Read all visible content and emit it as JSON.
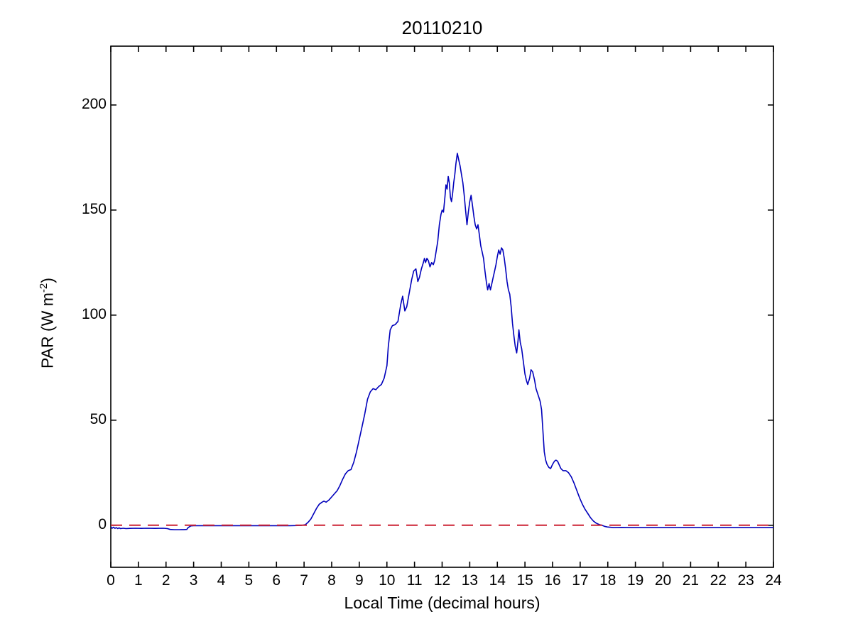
{
  "figure": {
    "title": "20110210",
    "xlabel": "Local Time (decimal hours)",
    "ylabel_main": "PAR (W m",
    "ylabel_sup": "-2",
    "ylabel_close": ")"
  },
  "chart_data": {
    "type": "line",
    "title": "20110210",
    "xlabel": "Local Time (decimal hours)",
    "ylabel": "PAR (W m^-2)",
    "xlim": [
      0,
      24
    ],
    "ylim": [
      -20,
      228
    ],
    "xticks": [
      0,
      1,
      2,
      3,
      4,
      5,
      6,
      7,
      8,
      9,
      10,
      11,
      12,
      13,
      14,
      15,
      16,
      17,
      18,
      19,
      20,
      21,
      22,
      23,
      24
    ],
    "yticks": [
      0,
      50,
      100,
      150,
      200
    ],
    "grid": false,
    "legend": "none",
    "axis_color": "#000000",
    "background": "#ffffff",
    "series": [
      {
        "name": "PAR",
        "color": "#0000bb",
        "style": "solid",
        "width": 1.6,
        "points": [
          [
            0,
            -0.8
          ],
          [
            0.05,
            -1.4
          ],
          [
            0.1,
            -0.9
          ],
          [
            0.15,
            -1.5
          ],
          [
            0.2,
            -1.1
          ],
          [
            0.25,
            -1.6
          ],
          [
            0.3,
            -1.2
          ],
          [
            0.35,
            -1.6
          ],
          [
            0.45,
            -1.4
          ],
          [
            0.55,
            -1.6
          ],
          [
            0.7,
            -1.5
          ],
          [
            0.9,
            -1.4
          ],
          [
            1.1,
            -1.5
          ],
          [
            1.3,
            -1.4
          ],
          [
            1.6,
            -1.5
          ],
          [
            1.9,
            -1.4
          ],
          [
            2.05,
            -1.6
          ],
          [
            2.15,
            -2
          ],
          [
            2.3,
            -2.1
          ],
          [
            2.5,
            -2.1
          ],
          [
            2.65,
            -2.05
          ],
          [
            2.75,
            -2
          ],
          [
            2.8,
            -1.1
          ],
          [
            2.9,
            -0.3
          ],
          [
            3,
            -0.2
          ],
          [
            3.5,
            -0.2
          ],
          [
            4,
            -0.2
          ],
          [
            4.5,
            -0.2
          ],
          [
            5,
            -0.2
          ],
          [
            5.5,
            -0.2
          ],
          [
            6,
            -0.2
          ],
          [
            6.5,
            -0.2
          ],
          [
            6.9,
            -0.1
          ],
          [
            7.05,
            0.3
          ],
          [
            7.15,
            1.5
          ],
          [
            7.25,
            3
          ],
          [
            7.35,
            5.5
          ],
          [
            7.45,
            8
          ],
          [
            7.55,
            10
          ],
          [
            7.65,
            11
          ],
          [
            7.72,
            11.5
          ],
          [
            7.8,
            11
          ],
          [
            7.9,
            12
          ],
          [
            8,
            13.5
          ],
          [
            8.1,
            15
          ],
          [
            8.2,
            16.5
          ],
          [
            8.3,
            19
          ],
          [
            8.4,
            22
          ],
          [
            8.5,
            24.5
          ],
          [
            8.6,
            26
          ],
          [
            8.7,
            26.5
          ],
          [
            8.8,
            30
          ],
          [
            8.9,
            35
          ],
          [
            9,
            41
          ],
          [
            9.1,
            47
          ],
          [
            9.2,
            53
          ],
          [
            9.3,
            60
          ],
          [
            9.4,
            63.5
          ],
          [
            9.5,
            65
          ],
          [
            9.6,
            64.5
          ],
          [
            9.7,
            66
          ],
          [
            9.8,
            67
          ],
          [
            9.9,
            70
          ],
          [
            10,
            76
          ],
          [
            10.05,
            85
          ],
          [
            10.12,
            93
          ],
          [
            10.2,
            95
          ],
          [
            10.3,
            95.5
          ],
          [
            10.4,
            97
          ],
          [
            10.5,
            105
          ],
          [
            10.57,
            109
          ],
          [
            10.65,
            102
          ],
          [
            10.72,
            104
          ],
          [
            10.8,
            110
          ],
          [
            10.9,
            117
          ],
          [
            10.97,
            121
          ],
          [
            11.05,
            122
          ],
          [
            11.12,
            116
          ],
          [
            11.18,
            118
          ],
          [
            11.25,
            122
          ],
          [
            11.32,
            125
          ],
          [
            11.36,
            127
          ],
          [
            11.4,
            125
          ],
          [
            11.45,
            127
          ],
          [
            11.5,
            126
          ],
          [
            11.56,
            123
          ],
          [
            11.62,
            125
          ],
          [
            11.68,
            124
          ],
          [
            11.73,
            126
          ],
          [
            11.78,
            130
          ],
          [
            11.84,
            135
          ],
          [
            11.9,
            143
          ],
          [
            11.96,
            148
          ],
          [
            12,
            150
          ],
          [
            12.05,
            149
          ],
          [
            12.1,
            156
          ],
          [
            12.14,
            162
          ],
          [
            12.18,
            160
          ],
          [
            12.22,
            166
          ],
          [
            12.26,
            163
          ],
          [
            12.3,
            156
          ],
          [
            12.34,
            154
          ],
          [
            12.38,
            158
          ],
          [
            12.42,
            163
          ],
          [
            12.46,
            167
          ],
          [
            12.5,
            172
          ],
          [
            12.55,
            177
          ],
          [
            12.6,
            174
          ],
          [
            12.65,
            171
          ],
          [
            12.7,
            167
          ],
          [
            12.75,
            163
          ],
          [
            12.8,
            157
          ],
          [
            12.85,
            150
          ],
          [
            12.9,
            143
          ],
          [
            12.95,
            149
          ],
          [
            13,
            154
          ],
          [
            13.05,
            157
          ],
          [
            13.1,
            152
          ],
          [
            13.15,
            147
          ],
          [
            13.2,
            143
          ],
          [
            13.25,
            141
          ],
          [
            13.3,
            143
          ],
          [
            13.35,
            138
          ],
          [
            13.4,
            133
          ],
          [
            13.45,
            130
          ],
          [
            13.5,
            127
          ],
          [
            13.55,
            121
          ],
          [
            13.6,
            116
          ],
          [
            13.65,
            112
          ],
          [
            13.7,
            115
          ],
          [
            13.75,
            112
          ],
          [
            13.8,
            115
          ],
          [
            13.85,
            118
          ],
          [
            13.9,
            121
          ],
          [
            13.95,
            124
          ],
          [
            14,
            128
          ],
          [
            14.05,
            131
          ],
          [
            14.1,
            129
          ],
          [
            14.15,
            132
          ],
          [
            14.2,
            131
          ],
          [
            14.25,
            127
          ],
          [
            14.3,
            122
          ],
          [
            14.35,
            116
          ],
          [
            14.4,
            112
          ],
          [
            14.45,
            110
          ],
          [
            14.5,
            104
          ],
          [
            14.55,
            96
          ],
          [
            14.6,
            90
          ],
          [
            14.65,
            85
          ],
          [
            14.7,
            82
          ],
          [
            14.75,
            88
          ],
          [
            14.78,
            93
          ],
          [
            14.83,
            87
          ],
          [
            14.88,
            84
          ],
          [
            14.95,
            77
          ],
          [
            15,
            72
          ],
          [
            15.05,
            69
          ],
          [
            15.1,
            67
          ],
          [
            15.17,
            70
          ],
          [
            15.22,
            74
          ],
          [
            15.28,
            73
          ],
          [
            15.35,
            69
          ],
          [
            15.4,
            65
          ],
          [
            15.45,
            63
          ],
          [
            15.5,
            61
          ],
          [
            15.55,
            59
          ],
          [
            15.6,
            55
          ],
          [
            15.65,
            45
          ],
          [
            15.7,
            35
          ],
          [
            15.75,
            31
          ],
          [
            15.8,
            29
          ],
          [
            15.87,
            27.5
          ],
          [
            15.93,
            27
          ],
          [
            16,
            29
          ],
          [
            16.07,
            30.5
          ],
          [
            16.12,
            31
          ],
          [
            16.18,
            30.5
          ],
          [
            16.25,
            28.5
          ],
          [
            16.3,
            27
          ],
          [
            16.38,
            26
          ],
          [
            16.48,
            26
          ],
          [
            16.58,
            25
          ],
          [
            16.68,
            23
          ],
          [
            16.78,
            20
          ],
          [
            16.88,
            16.5
          ],
          [
            16.98,
            13
          ],
          [
            17.08,
            10
          ],
          [
            17.18,
            7.5
          ],
          [
            17.28,
            5.5
          ],
          [
            17.38,
            3.5
          ],
          [
            17.48,
            2
          ],
          [
            17.58,
            1
          ],
          [
            17.68,
            0.4
          ],
          [
            17.78,
            0
          ],
          [
            17.88,
            -0.5
          ],
          [
            17.98,
            -0.8
          ],
          [
            18.2,
            -1.1
          ],
          [
            18.5,
            -1
          ],
          [
            19,
            -1.1
          ],
          [
            19.5,
            -1.1
          ],
          [
            20,
            -1.1
          ],
          [
            20.5,
            -1.1
          ],
          [
            21,
            -1.1
          ],
          [
            21.5,
            -1.1
          ],
          [
            22,
            -1.1
          ],
          [
            22.5,
            -1.1
          ],
          [
            23,
            -1.1
          ],
          [
            23.5,
            -1.1
          ],
          [
            24,
            -1.1
          ]
        ]
      },
      {
        "name": "zero-reference-line",
        "color": "#cc2233",
        "style": "dashed",
        "width": 2,
        "points": [
          [
            0,
            0
          ],
          [
            24,
            0
          ]
        ]
      }
    ]
  }
}
